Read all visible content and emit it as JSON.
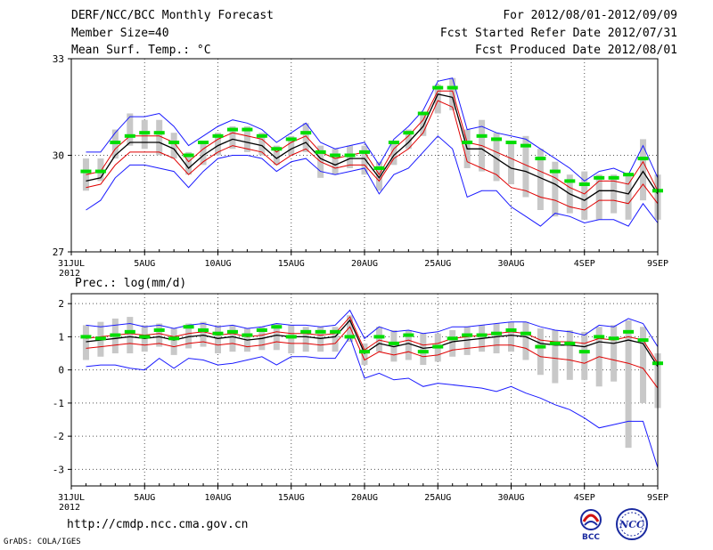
{
  "header": {
    "title": "DERF/NCC/BCC Monthly Forecast",
    "member": "Member Size=40",
    "variable": "Mean Surf. Temp.: °C",
    "period": "For 2012/08/01-2012/09/09",
    "refer": "Fcst Started Refer Date 2012/07/31",
    "produced": "Fcst Produced Date 2012/08/01"
  },
  "footer": {
    "url": "http://cmdp.ncc.cma.gov.cn",
    "credit": "GrADS: COLA/IGES",
    "logo_left_text": "BCC",
    "logo_right_text": "NCC"
  },
  "colors": {
    "max_min": "#1a1aff",
    "spread": "#e00000",
    "mean": "#000000",
    "median": "#00dd00",
    "box": "#c8c8c8",
    "grid": "#555555"
  },
  "chart_data": [
    {
      "type": "line",
      "title": "",
      "panel_label": "",
      "xlabel": "",
      "ylabel": "Mean Surf. Temp.: °C",
      "ylim": [
        27,
        33
      ],
      "yticks": [
        27,
        30,
        33
      ],
      "x_tick_labels": [
        "31JUL",
        "5AUG",
        "10AUG",
        "15AUG",
        "20AUG",
        "25AUG",
        "30AUG",
        "4SEP",
        "9SEP"
      ],
      "x_tick_positions": [
        0,
        5,
        10,
        15,
        20,
        25,
        30,
        35,
        40
      ],
      "x_year_label": "2012",
      "days": [
        1,
        2,
        3,
        4,
        5,
        6,
        7,
        8,
        9,
        10,
        11,
        12,
        13,
        14,
        15,
        16,
        17,
        18,
        19,
        20,
        21,
        22,
        23,
        24,
        25,
        26,
        27,
        28,
        29,
        30,
        31,
        32,
        33,
        34,
        35,
        36,
        37,
        38,
        39,
        40
      ],
      "series": [
        {
          "name": "max",
          "values": [
            30.1,
            30.1,
            30.7,
            31.2,
            31.2,
            31.3,
            30.9,
            30.3,
            30.6,
            30.9,
            31.1,
            31.0,
            30.8,
            30.4,
            30.7,
            31.0,
            30.4,
            30.2,
            30.3,
            30.4,
            29.7,
            30.5,
            30.9,
            31.4,
            32.3,
            32.4,
            30.8,
            30.9,
            30.7,
            30.6,
            30.5,
            30.2,
            29.9,
            29.6,
            29.2,
            29.5,
            29.6,
            29.4,
            30.3,
            29.3
          ]
        },
        {
          "name": "upper",
          "values": [
            29.4,
            29.5,
            30.2,
            30.6,
            30.6,
            30.6,
            30.4,
            29.8,
            30.2,
            30.5,
            30.7,
            30.6,
            30.5,
            30.1,
            30.4,
            30.6,
            30.1,
            29.9,
            30.0,
            30.1,
            29.4,
            30.2,
            30.6,
            31.1,
            32.0,
            32.0,
            30.4,
            30.3,
            30.1,
            29.9,
            29.7,
            29.5,
            29.3,
            29.0,
            28.8,
            29.2,
            29.2,
            29.1,
            29.8,
            28.9
          ]
        },
        {
          "name": "mean",
          "values": [
            29.2,
            29.3,
            30.0,
            30.4,
            30.4,
            30.4,
            30.2,
            29.6,
            30.0,
            30.3,
            30.5,
            30.4,
            30.3,
            29.9,
            30.2,
            30.4,
            29.9,
            29.7,
            29.9,
            29.9,
            29.3,
            30.0,
            30.4,
            30.9,
            31.9,
            31.8,
            30.2,
            30.2,
            29.9,
            29.6,
            29.5,
            29.3,
            29.1,
            28.8,
            28.6,
            28.9,
            28.9,
            28.8,
            29.5,
            28.8
          ]
        },
        {
          "name": "lower",
          "values": [
            29.0,
            29.1,
            29.7,
            30.1,
            30.1,
            30.1,
            29.9,
            29.4,
            29.8,
            30.1,
            30.3,
            30.2,
            30.1,
            29.7,
            30.0,
            30.2,
            29.8,
            29.6,
            29.7,
            29.7,
            29.2,
            29.9,
            30.2,
            30.7,
            31.7,
            31.5,
            29.8,
            29.6,
            29.4,
            29.0,
            28.9,
            28.7,
            28.6,
            28.4,
            28.3,
            28.6,
            28.6,
            28.5,
            29.1,
            28.5
          ]
        },
        {
          "name": "min",
          "values": [
            28.3,
            28.6,
            29.3,
            29.7,
            29.7,
            29.6,
            29.5,
            29.0,
            29.5,
            29.9,
            30.0,
            30.0,
            29.9,
            29.5,
            29.8,
            29.9,
            29.5,
            29.4,
            29.5,
            29.6,
            28.8,
            29.4,
            29.6,
            30.1,
            30.6,
            30.2,
            28.7,
            28.9,
            28.9,
            28.4,
            28.1,
            27.8,
            28.2,
            28.1,
            27.9,
            28.0,
            28.0,
            27.8,
            28.5,
            27.9
          ]
        },
        {
          "name": "median",
          "values": [
            29.5,
            29.5,
            30.4,
            30.6,
            30.7,
            30.7,
            30.4,
            30.0,
            30.4,
            30.6,
            30.8,
            30.8,
            30.6,
            30.2,
            30.5,
            30.7,
            30.1,
            30.0,
            30.0,
            30.1,
            29.6,
            30.4,
            30.7,
            31.3,
            32.1,
            32.1,
            30.4,
            30.6,
            30.5,
            30.4,
            30.3,
            29.9,
            29.5,
            29.2,
            29.1,
            29.3,
            29.3,
            29.4,
            29.9,
            28.9
          ]
        },
        {
          "name": "box_high",
          "values": [
            29.9,
            29.9,
            30.8,
            31.3,
            31.1,
            31.1,
            30.7,
            30.1,
            30.4,
            30.7,
            30.9,
            30.9,
            30.7,
            30.3,
            30.6,
            31.0,
            30.3,
            30.2,
            30.3,
            30.3,
            29.8,
            30.4,
            30.8,
            31.3,
            32.2,
            32.4,
            30.8,
            31.1,
            30.7,
            30.4,
            30.6,
            30.2,
            29.8,
            29.4,
            29.5,
            29.4,
            29.4,
            29.4,
            30.5,
            29.4
          ]
        },
        {
          "name": "box_low",
          "values": [
            28.9,
            29.2,
            29.9,
            30.3,
            30.2,
            30.0,
            29.9,
            29.4,
            29.7,
            30.0,
            30.2,
            30.1,
            30.0,
            29.7,
            30.0,
            30.1,
            29.3,
            29.4,
            29.6,
            29.4,
            28.9,
            29.7,
            30.2,
            30.6,
            31.3,
            31.4,
            29.6,
            29.5,
            29.2,
            29.1,
            28.7,
            28.3,
            28.1,
            28.2,
            28.0,
            28.0,
            28.2,
            28.0,
            28.6,
            28.0
          ]
        }
      ]
    },
    {
      "type": "line",
      "title": "Prec.: log(mm/d)",
      "panel_label": "Prec.: log(mm/d)",
      "xlabel": "",
      "ylabel": "log(mm/d)",
      "ylim": [
        -3.5,
        2.3
      ],
      "yticks": [
        -3,
        -2,
        -1,
        0,
        1,
        2
      ],
      "x_tick_labels": [
        "31JUL",
        "5AUG",
        "10AUG",
        "15AUG",
        "20AUG",
        "25AUG",
        "30AUG",
        "4SEP",
        "9SEP"
      ],
      "x_tick_positions": [
        0,
        5,
        10,
        15,
        20,
        25,
        30,
        35,
        40
      ],
      "x_year_label": "2012",
      "days": [
        1,
        2,
        3,
        4,
        5,
        6,
        7,
        8,
        9,
        10,
        11,
        12,
        13,
        14,
        15,
        16,
        17,
        18,
        19,
        20,
        21,
        22,
        23,
        24,
        25,
        26,
        27,
        28,
        29,
        30,
        31,
        32,
        33,
        34,
        35,
        36,
        37,
        38,
        39,
        40
      ],
      "series": [
        {
          "name": "max",
          "values": [
            1.35,
            1.3,
            1.35,
            1.4,
            1.3,
            1.35,
            1.25,
            1.35,
            1.4,
            1.3,
            1.35,
            1.25,
            1.3,
            1.4,
            1.35,
            1.35,
            1.3,
            1.35,
            1.8,
            0.95,
            1.3,
            1.15,
            1.2,
            1.1,
            1.15,
            1.3,
            1.3,
            1.35,
            1.4,
            1.45,
            1.45,
            1.3,
            1.2,
            1.15,
            1.05,
            1.35,
            1.3,
            1.55,
            1.4,
            0.7
          ]
        },
        {
          "name": "upper",
          "values": [
            0.95,
            1.0,
            1.05,
            1.1,
            1.05,
            1.1,
            1.0,
            1.1,
            1.15,
            1.05,
            1.1,
            1.0,
            1.05,
            1.15,
            1.1,
            1.1,
            1.05,
            1.1,
            1.6,
            0.6,
            0.9,
            0.8,
            0.9,
            0.75,
            0.8,
            0.95,
            1.0,
            1.05,
            1.1,
            1.15,
            1.1,
            0.9,
            0.85,
            0.85,
            0.8,
            0.95,
            0.9,
            1.0,
            0.9,
            0.2
          ]
        },
        {
          "name": "mean",
          "values": [
            0.85,
            0.9,
            0.95,
            1.0,
            0.95,
            1.0,
            0.9,
            1.0,
            1.05,
            0.95,
            1.0,
            0.9,
            0.95,
            1.05,
            1.0,
            1.0,
            0.95,
            1.0,
            1.5,
            0.5,
            0.8,
            0.7,
            0.8,
            0.65,
            0.7,
            0.85,
            0.9,
            0.95,
            1.0,
            1.05,
            1.0,
            0.8,
            0.75,
            0.75,
            0.7,
            0.85,
            0.8,
            0.9,
            0.8,
            0.1
          ]
        },
        {
          "name": "lower",
          "values": [
            0.65,
            0.7,
            0.75,
            0.8,
            0.75,
            0.8,
            0.7,
            0.8,
            0.85,
            0.75,
            0.8,
            0.7,
            0.75,
            0.85,
            0.8,
            0.8,
            0.75,
            0.8,
            1.3,
            0.3,
            0.55,
            0.45,
            0.55,
            0.4,
            0.45,
            0.6,
            0.65,
            0.7,
            0.75,
            0.75,
            0.65,
            0.4,
            0.35,
            0.3,
            0.2,
            0.4,
            0.3,
            0.2,
            0.05,
            -0.55
          ]
        },
        {
          "name": "min",
          "values": [
            0.1,
            0.15,
            0.15,
            0.05,
            0.0,
            0.35,
            0.05,
            0.35,
            0.3,
            0.15,
            0.2,
            0.3,
            0.4,
            0.15,
            0.4,
            0.4,
            0.35,
            0.35,
            1.0,
            -0.25,
            -0.1,
            -0.3,
            -0.25,
            -0.5,
            -0.4,
            -0.45,
            -0.5,
            -0.55,
            -0.65,
            -0.5,
            -0.7,
            -0.85,
            -1.05,
            -1.2,
            -1.45,
            -1.75,
            -1.65,
            -1.55,
            -1.55,
            -2.95
          ]
        },
        {
          "name": "median",
          "values": [
            1.0,
            0.95,
            1.05,
            1.15,
            1.0,
            1.2,
            0.95,
            1.3,
            1.2,
            1.1,
            1.15,
            1.05,
            1.2,
            1.3,
            1.0,
            1.15,
            1.15,
            1.15,
            1.0,
            0.55,
            1.0,
            0.8,
            1.05,
            0.55,
            0.7,
            0.95,
            1.05,
            1.05,
            1.1,
            1.2,
            1.1,
            0.7,
            0.8,
            0.8,
            0.55,
            1.0,
            0.95,
            1.15,
            0.9,
            0.2
          ]
        },
        {
          "name": "box_high",
          "values": [
            1.35,
            1.45,
            1.55,
            1.6,
            1.35,
            1.4,
            1.25,
            1.4,
            1.45,
            1.35,
            1.35,
            1.25,
            1.3,
            1.4,
            1.35,
            1.3,
            1.3,
            1.3,
            1.65,
            0.8,
            1.3,
            1.2,
            1.2,
            1.1,
            1.1,
            1.2,
            1.3,
            1.35,
            1.4,
            1.45,
            1.45,
            1.25,
            1.2,
            1.2,
            1.15,
            1.3,
            1.35,
            1.5,
            1.3,
            0.5
          ]
        },
        {
          "name": "box_low",
          "values": [
            0.3,
            0.4,
            0.5,
            0.5,
            0.55,
            0.7,
            0.45,
            0.65,
            0.7,
            0.5,
            0.55,
            0.55,
            0.6,
            0.6,
            0.5,
            0.55,
            0.55,
            0.55,
            0.85,
            0.15,
            0.55,
            0.25,
            0.3,
            0.15,
            0.25,
            0.4,
            0.45,
            0.55,
            0.5,
            0.55,
            0.3,
            -0.15,
            -0.4,
            -0.3,
            -0.3,
            -0.5,
            -0.35,
            -2.35,
            -1.0,
            -1.15
          ]
        }
      ]
    }
  ]
}
